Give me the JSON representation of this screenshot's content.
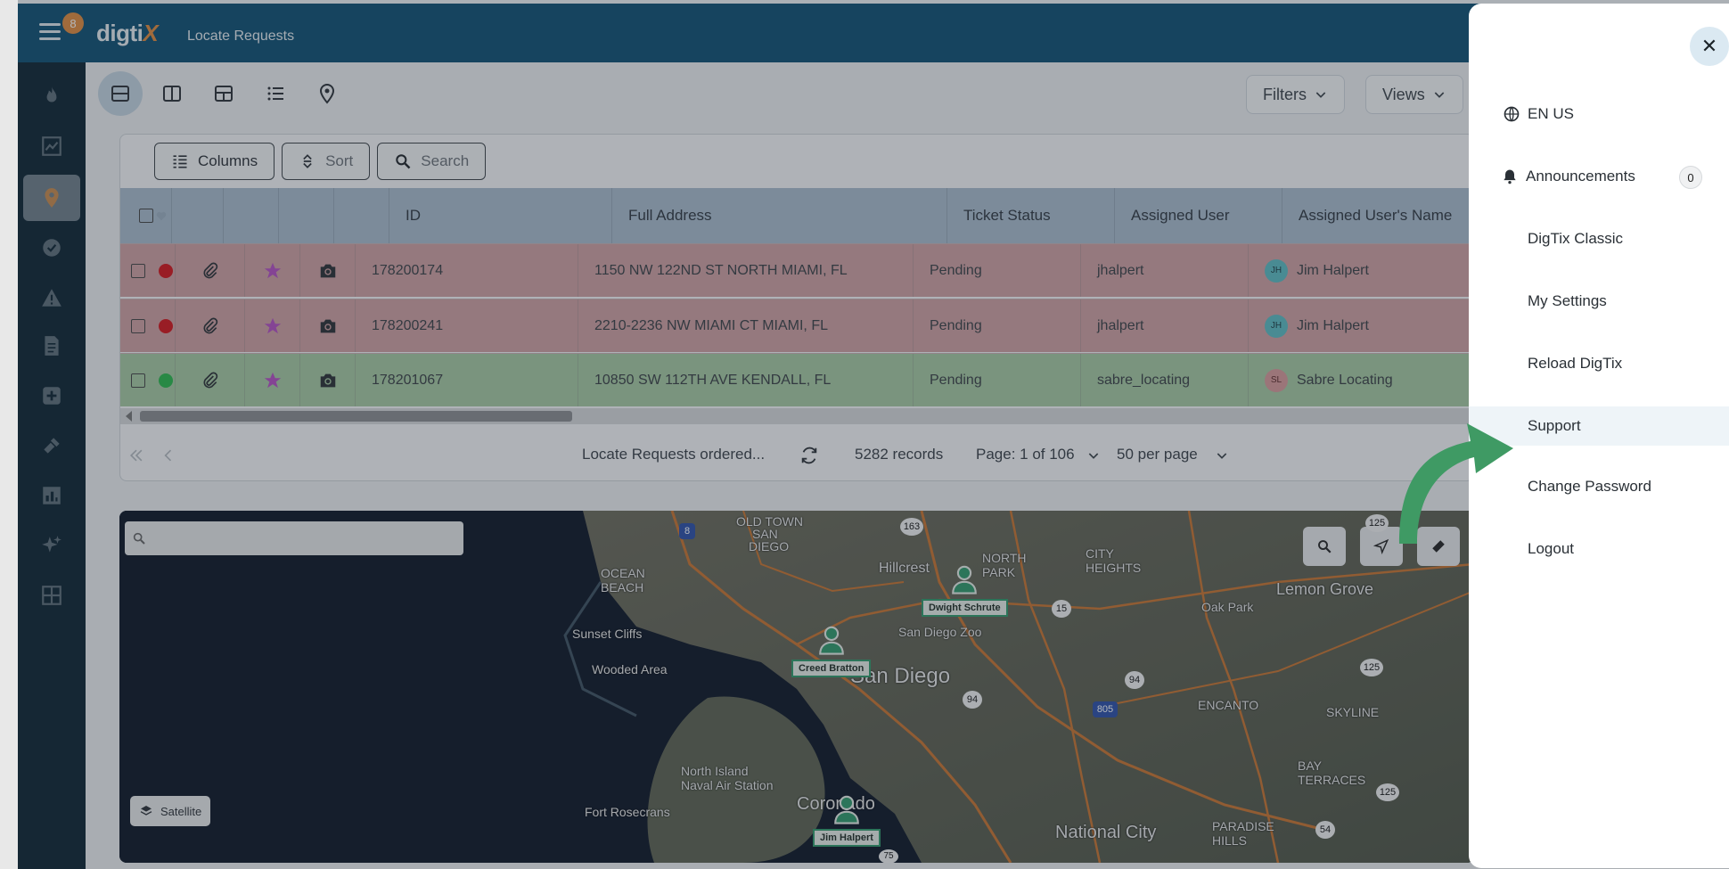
{
  "header": {
    "notification_count": "8",
    "logo_text": "digti",
    "logo_accent": "X",
    "title": "Locate Requests"
  },
  "sidebar": {
    "items": [
      {
        "name": "fire-icon"
      },
      {
        "name": "chart-icon"
      },
      {
        "name": "map-pin-icon",
        "active": true
      },
      {
        "name": "check-icon"
      },
      {
        "name": "warning-icon"
      },
      {
        "name": "document-icon"
      },
      {
        "name": "plus-icon"
      },
      {
        "name": "shovel-icon"
      },
      {
        "name": "bar-chart-icon"
      },
      {
        "name": "sparkle-icon"
      },
      {
        "name": "grid-icon"
      }
    ]
  },
  "toolbar_top": {
    "filters_label": "Filters",
    "views_label": "Views"
  },
  "table_toolbar": {
    "columns_label": "Columns",
    "sort_label": "Sort",
    "search_label": "Search"
  },
  "table": {
    "headers": {
      "id": "ID",
      "address": "Full Address",
      "status": "Ticket Status",
      "user": "Assigned User",
      "user_name": "Assigned User's Name"
    },
    "rows": [
      {
        "id": "178200174",
        "address": "1150 NW 122ND ST NORTH MIAMI, FL",
        "status": "Pending",
        "user": "jhalpert",
        "initials": "JH",
        "user_name": "Jim Halpert"
      },
      {
        "id": "178200241",
        "address": "2210-2236 NW MIAMI CT MIAMI, FL",
        "status": "Pending",
        "user": "jhalpert",
        "initials": "JH",
        "user_name": "Jim Halpert"
      },
      {
        "id": "178201067",
        "address": "10850 SW 112TH AVE KENDALL, FL",
        "status": "Pending",
        "user": "sabre_locating",
        "initials": "SL",
        "user_name": "Sabre Locating"
      }
    ]
  },
  "pager": {
    "ordered_label": "Locate Requests ordered...",
    "records": "5282 records",
    "page": "Page: 1 of 106",
    "per_page": "50 per page"
  },
  "map": {
    "search_placeholder": "",
    "satellite_label": "Satellite",
    "labels": {
      "old_town": "OLD TOWN",
      "san_diego_small": "SAN",
      "diego": "DIEGO",
      "hillcrest": "Hillcrest",
      "north_park": "NORTH PARK",
      "city_heights": "CITY HEIGHTS",
      "oak_park": "Oak Park",
      "lemon_grove": "Lemon Grove",
      "ocean_beach": "OCEAN BEACH",
      "sunset_cliffs": "Sunset Cliffs",
      "wooded_area": "Wooded Area",
      "san_diego_zoo": "San Diego Zoo",
      "san_diego": "San Diego",
      "encanto": "ENCANTO",
      "skyline": "SKYLINE",
      "bay_terraces": "BAY TERRACES",
      "north_island": "North Island Naval Air Station",
      "coronado": "Coronado",
      "fort_rosecrans": "Fort Rosecrans",
      "national_city": "National City",
      "paradise_hills": "PARADISE HILLS",
      "rte_163": "163",
      "rte_8": "8",
      "rte_15": "15",
      "rte_94a": "94",
      "rte_94b": "94",
      "rte_805": "805",
      "rte_125a": "125",
      "rte_125b": "125",
      "rte_125c": "125",
      "rte_54": "54",
      "rte_75": "75"
    },
    "pins": [
      {
        "name": "Dwight Schrute"
      },
      {
        "name": "Creed Bratton"
      },
      {
        "name": "Jim Halpert"
      }
    ]
  },
  "drawer": {
    "language": "EN US",
    "announcements": "Announcements",
    "announcements_count": "0",
    "digtix_classic": "DigTix Classic",
    "my_settings": "My Settings",
    "reload": "Reload DigTix",
    "support": "Support",
    "change_password": "Change Password",
    "logout": "Logout"
  },
  "colors": {
    "topbar": "#0d4f72",
    "sidebar": "#0c2231",
    "row_red": "#cfa0a2",
    "row_green": "#a6c9a2",
    "accent_orange": "#e08a3c",
    "dot_red": "#d6131a",
    "dot_green": "#28b84a",
    "star": "#b54fc4",
    "arrow_green": "#3f9a64"
  }
}
